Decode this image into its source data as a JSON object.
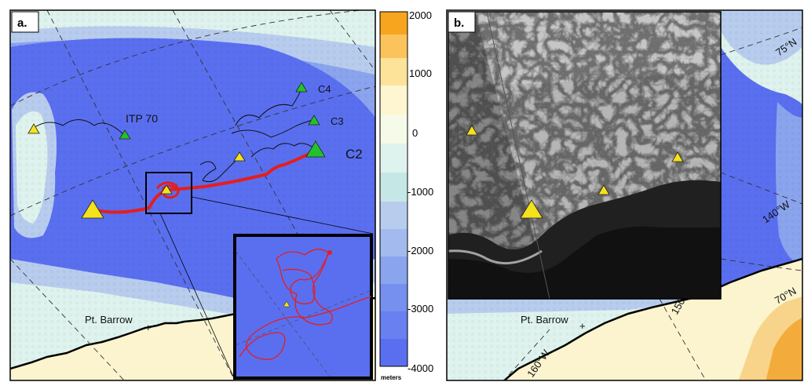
{
  "panel_a": {
    "tag": "a.",
    "buoys": [
      {
        "label": "ITP 70"
      },
      {
        "label": "C4"
      },
      {
        "label": "C3"
      },
      {
        "label": "C2"
      }
    ],
    "place_label": "Pt. Barrow"
  },
  "colorbar": {
    "ticks": [
      "2000",
      "1000",
      "0",
      "-1000",
      "-2000",
      "-3000",
      "-4000"
    ],
    "units": "meters"
  },
  "panel_b": {
    "tag": "b.",
    "place_label": "Pt. Barrow",
    "lat_labels": [
      "75°N",
      "70°N"
    ],
    "lon_labels": [
      "140°W",
      "150°W",
      "160°W"
    ]
  },
  "colors": {
    "deep_basin": "#5a6ff0",
    "mid_depth": "#8aa4ee",
    "shelf": "#b8cdee",
    "shallow": "#dff3ee",
    "land": "#fbf4cf",
    "track": "#e41e1e",
    "buoy_green": "#22c22a",
    "buoy_yellow": "#f4e21a"
  }
}
